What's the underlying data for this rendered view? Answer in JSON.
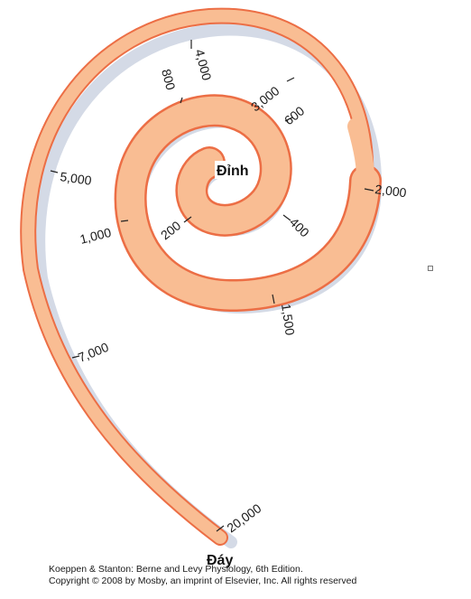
{
  "diagram": {
    "apex_label": "Đỉnh",
    "base_label": "Đáy",
    "frequency_ticks": [
      "200",
      "400",
      "600",
      "800",
      "1,000",
      "1,500",
      "2,000",
      "3,000",
      "4,000",
      "5,000",
      "7,000",
      "20,000"
    ],
    "colors": {
      "fill": "#f9bd93",
      "outline": "#ec6e45",
      "shadow": "#d4dae6"
    }
  },
  "credits": {
    "line1": "Koeppen & Stanton: Berne and Levy Physiology, 6th Edition.",
    "line2": "Copyright © 2008 by Mosby, an imprint of Elsevier, Inc. All rights reserved"
  }
}
